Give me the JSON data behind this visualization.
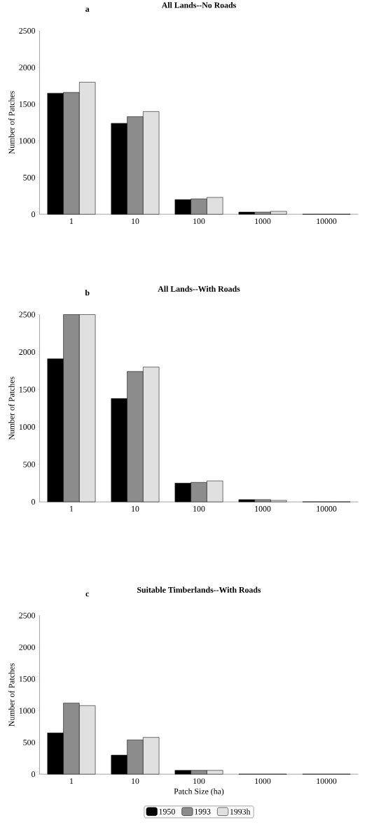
{
  "chart_data": [
    {
      "type": "bar",
      "title": "All Lands--No Roads",
      "annotations": [
        "a"
      ],
      "ylabel": "Number of Patches",
      "categories": [
        "1",
        "10",
        "100",
        "1000",
        "10000"
      ],
      "ylim": [
        0,
        2500
      ],
      "yticks": [
        0,
        500,
        1000,
        1500,
        2000,
        2500
      ],
      "series": [
        {
          "color": "#000000",
          "values": [
            1650,
            1240,
            200,
            30,
            0
          ]
        },
        {
          "color": "#8c8c8c",
          "values": [
            1660,
            1330,
            210,
            30,
            0
          ]
        },
        {
          "color": "#e0e0e0",
          "values": [
            1800,
            1400,
            230,
            40,
            0
          ]
        }
      ]
    },
    {
      "type": "bar",
      "title": "All Lands--With Roads",
      "annotations": [
        "b"
      ],
      "ylabel": "Number of Patches",
      "categories": [
        "1",
        "10",
        "100",
        "1000",
        "10000"
      ],
      "ylim": [
        0,
        2500
      ],
      "yticks": [
        0,
        500,
        1000,
        1500,
        2000,
        2500
      ],
      "series": [
        {
          "color": "#000000",
          "values": [
            1910,
            1380,
            250,
            30,
            0
          ]
        },
        {
          "color": "#8c8c8c",
          "values": [
            2500,
            1740,
            260,
            30,
            0
          ]
        },
        {
          "color": "#e0e0e0",
          "values": [
            2500,
            1800,
            280,
            20,
            0
          ]
        }
      ]
    },
    {
      "type": "bar",
      "title": "Suitable Timberlands--With Roads",
      "annotations": [
        "c"
      ],
      "ylabel": "Number of Patches",
      "xlabel": "Patch Size (ha)",
      "categories": [
        "1",
        "10",
        "100",
        "1000",
        "10000"
      ],
      "ylim": [
        0,
        2500
      ],
      "yticks": [
        0,
        500,
        1000,
        1500,
        2000,
        2500
      ],
      "legend": "bottom",
      "series": [
        {
          "name": "1950",
          "color": "#000000",
          "values": [
            650,
            300,
            60,
            0,
            0
          ]
        },
        {
          "name": "1993",
          "color": "#8c8c8c",
          "values": [
            1120,
            540,
            60,
            0,
            0
          ]
        },
        {
          "name": "1993h",
          "color": "#e0e0e0",
          "values": [
            1080,
            580,
            60,
            0,
            0
          ]
        }
      ]
    }
  ]
}
